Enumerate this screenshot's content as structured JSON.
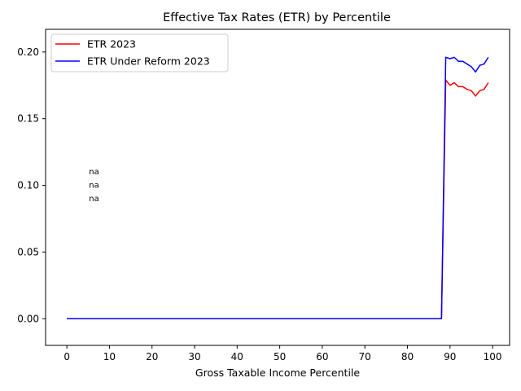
{
  "chart_data": {
    "type": "line",
    "title": "Effective Tax Rates (ETR) by Percentile",
    "xlabel": "Gross Taxable Income Percentile",
    "ylabel": "",
    "xlim": [
      -5,
      104
    ],
    "ylim": [
      -0.02,
      0.217
    ],
    "xticks": [
      0,
      10,
      20,
      30,
      40,
      50,
      60,
      70,
      80,
      90,
      100
    ],
    "xtick_labels": [
      "0",
      "10",
      "20",
      "30",
      "40",
      "50",
      "60",
      "70",
      "80",
      "90",
      "100"
    ],
    "yticks": [
      0.0,
      0.05,
      0.1,
      0.15,
      0.2
    ],
    "ytick_labels": [
      "0.00",
      "0.05",
      "0.10",
      "0.15",
      "0.20"
    ],
    "grid": false,
    "legend_position": "top-left",
    "series": [
      {
        "name": "ETR 2023",
        "color": "#ff0000",
        "x": [
          0,
          88,
          89,
          90,
          91,
          92,
          93,
          94,
          95,
          96,
          97,
          98,
          99
        ],
        "y": [
          0.0,
          0.0,
          0.179,
          0.175,
          0.177,
          0.174,
          0.174,
          0.172,
          0.171,
          0.167,
          0.171,
          0.172,
          0.177
        ]
      },
      {
        "name": "ETR Under Reform 2023",
        "color": "#0000ff",
        "x": [
          0,
          88,
          89,
          90,
          91,
          92,
          93,
          94,
          95,
          96,
          97,
          98,
          99
        ],
        "y": [
          0.0,
          0.0,
          0.196,
          0.195,
          0.196,
          0.193,
          0.193,
          0.191,
          0.189,
          0.185,
          0.19,
          0.191,
          0.196
        ]
      }
    ],
    "annotations": [
      {
        "text": "na",
        "x": 5,
        "y": 0.11
      },
      {
        "text": "na",
        "x": 5,
        "y": 0.1
      },
      {
        "text": "na",
        "x": 5,
        "y": 0.09
      }
    ]
  }
}
